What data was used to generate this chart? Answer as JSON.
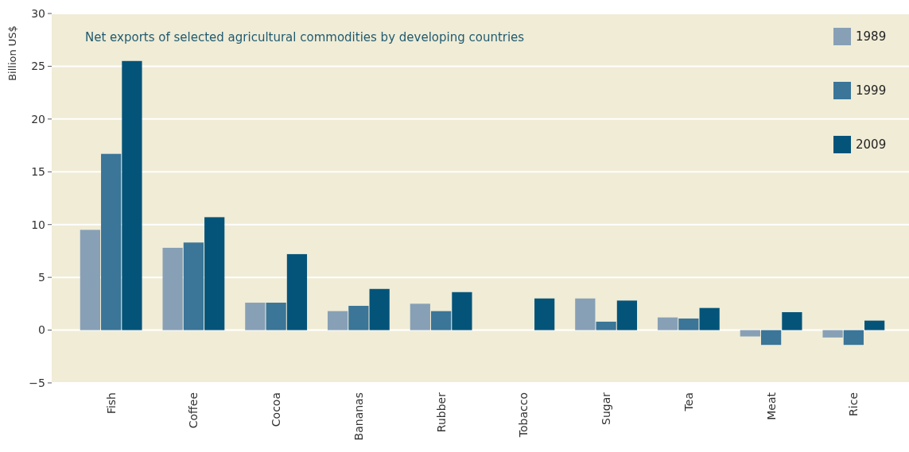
{
  "chart_data": {
    "type": "bar",
    "title": "Net exports of selected agricultural commodities by developing countries",
    "ylabel": "Billion US$",
    "categories": [
      "Fish",
      "Coffee",
      "Cocoa",
      "Bananas",
      "Rubber",
      "Tobacco",
      "Sugar",
      "Tea",
      "Meat",
      "Rice"
    ],
    "series": [
      {
        "name": "1989",
        "color": "#87a0b6",
        "values": [
          9.5,
          7.8,
          2.6,
          1.8,
          2.5,
          null,
          3.0,
          1.2,
          -0.6,
          -0.7
        ]
      },
      {
        "name": "1999",
        "color": "#3b7598",
        "values": [
          16.7,
          8.3,
          2.6,
          2.3,
          1.8,
          null,
          0.8,
          1.1,
          -1.4,
          -1.4
        ]
      },
      {
        "name": "2009",
        "color": "#04547a",
        "values": [
          25.5,
          10.7,
          7.2,
          3.9,
          3.6,
          3.0,
          2.8,
          2.1,
          1.7,
          0.9
        ]
      }
    ],
    "ylim": [
      -5,
      30
    ],
    "yticks": [
      {
        "value": -5,
        "label": "−5"
      },
      0,
      5,
      10,
      15,
      20,
      25,
      30
    ],
    "grid": "y",
    "legend": "top right"
  }
}
